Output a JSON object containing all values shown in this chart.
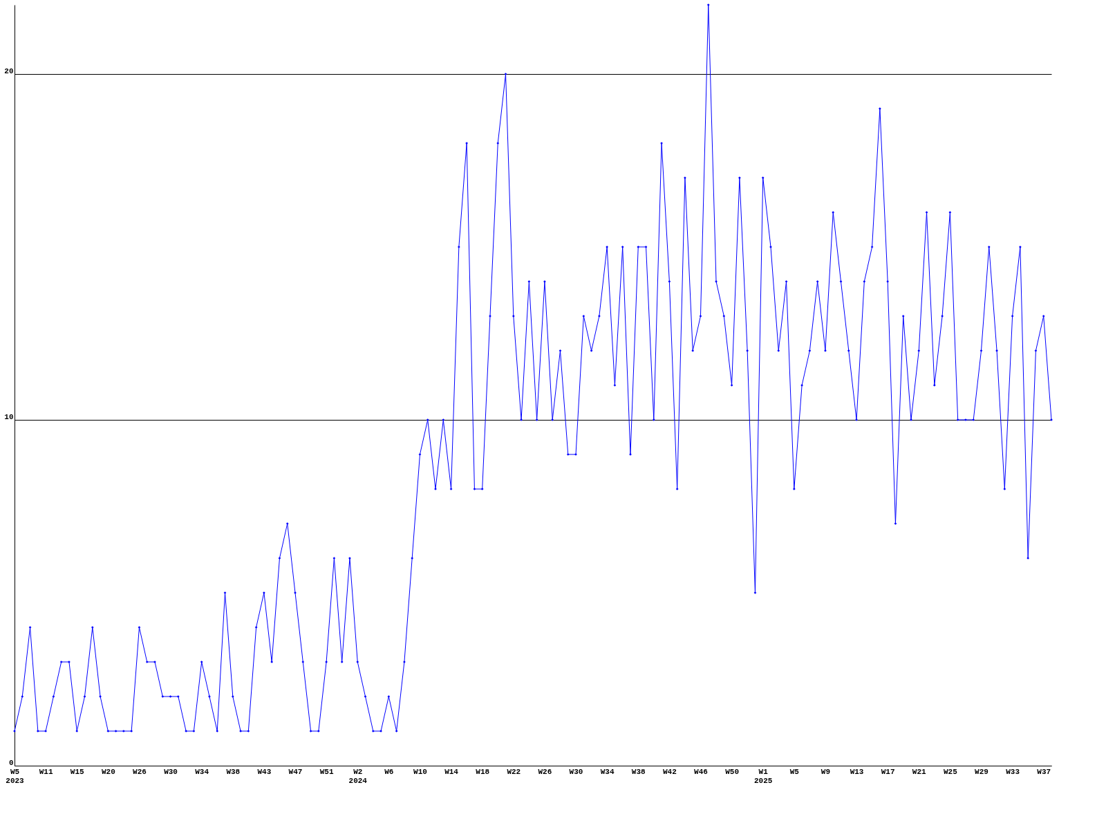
{
  "chart_data": {
    "type": "line",
    "categories": [
      "W5\n2023",
      null,
      null,
      null,
      "W11",
      null,
      null,
      null,
      "W15",
      null,
      null,
      null,
      "W20",
      null,
      null,
      null,
      "W26",
      null,
      null,
      null,
      "W30",
      null,
      null,
      null,
      "W34",
      null,
      null,
      null,
      "W38",
      null,
      null,
      null,
      "W43",
      null,
      null,
      null,
      "W47",
      null,
      null,
      null,
      "W51",
      null,
      null,
      null,
      "W2\n2024",
      null,
      null,
      null,
      "W6",
      null,
      null,
      null,
      "W10",
      null,
      null,
      null,
      "W14",
      null,
      null,
      null,
      "W18",
      null,
      null,
      null,
      "W22",
      null,
      null,
      null,
      "W26",
      null,
      null,
      null,
      "W30",
      null,
      null,
      null,
      "W34",
      null,
      null,
      null,
      "W38",
      null,
      null,
      null,
      "W42",
      null,
      null,
      null,
      "W46",
      null,
      null,
      null,
      "W50",
      null,
      null,
      null,
      "W1\n2025",
      null,
      null,
      null,
      "W5",
      null,
      null,
      null,
      "W9",
      null,
      null,
      null,
      "W13",
      null,
      null,
      null,
      "W17",
      null,
      null,
      null,
      "W21",
      null,
      null,
      null,
      "W25",
      null,
      null,
      null,
      "W29",
      null,
      null,
      null,
      "W33",
      null,
      null,
      null,
      "W37",
      null
    ],
    "series": [
      {
        "color": "#0000ff",
        "values": [
          1,
          2,
          4,
          1,
          1,
          2,
          3,
          3,
          1,
          2,
          4,
          2,
          1,
          1,
          1,
          1,
          4,
          3,
          3,
          2,
          2,
          2,
          1,
          1,
          3,
          2,
          1,
          5,
          2,
          1,
          1,
          4,
          5,
          3,
          6,
          7,
          5,
          3,
          1,
          1,
          3,
          6,
          3,
          6,
          3,
          2,
          1,
          1,
          2,
          1,
          3,
          6,
          9,
          10,
          8,
          10,
          8,
          15,
          18,
          8,
          8,
          13,
          18,
          20,
          13,
          10,
          14,
          10,
          14,
          10,
          12,
          9,
          9,
          13,
          12,
          13,
          15,
          11,
          15,
          9,
          15,
          15,
          10,
          18,
          14,
          8,
          17,
          12,
          13,
          22,
          14,
          13,
          11,
          17,
          12,
          5,
          17,
          15,
          12,
          14,
          8,
          11,
          12,
          14,
          12,
          16,
          14,
          12,
          10,
          14,
          15,
          19,
          14,
          7,
          13,
          10,
          12,
          16,
          11,
          13,
          16,
          10,
          10,
          10,
          12,
          15,
          12,
          8,
          13,
          15,
          6,
          12,
          13,
          10
        ]
      }
    ],
    "ylim": [
      0,
      22
    ],
    "yticks": [
      0,
      10,
      20
    ],
    "grid": "y",
    "marker": "diamond",
    "legend": false
  }
}
